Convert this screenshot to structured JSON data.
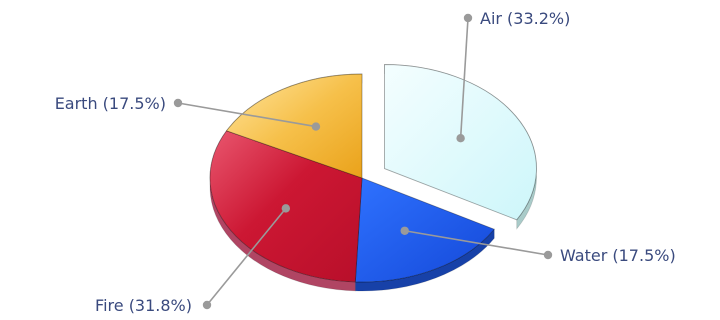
{
  "chart_data": {
    "type": "pie",
    "style": "3d-exploded",
    "slices": [
      {
        "label": "Air",
        "percent": 33.2,
        "display": "Air (33.2%)",
        "color": "#dcfbfd",
        "side_color": "#a9cbc9",
        "exploded": true
      },
      {
        "label": "Water",
        "percent": 17.5,
        "display": "Water (17.5%)",
        "color": "#1b5bf2",
        "side_color": "#1741a8",
        "exploded": false
      },
      {
        "label": "Fire",
        "percent": 31.8,
        "display": "Fire (31.8%)",
        "color": "#c41230",
        "side_color": "#b04563",
        "exploded": false
      },
      {
        "label": "Earth",
        "percent": 17.5,
        "display": "Earth (17.5%)",
        "color": "#f2b224",
        "side_color": "#c98f1a",
        "exploded": false
      }
    ],
    "label_color": "#3a4a7e",
    "leader_color": "#9a9a9a"
  }
}
